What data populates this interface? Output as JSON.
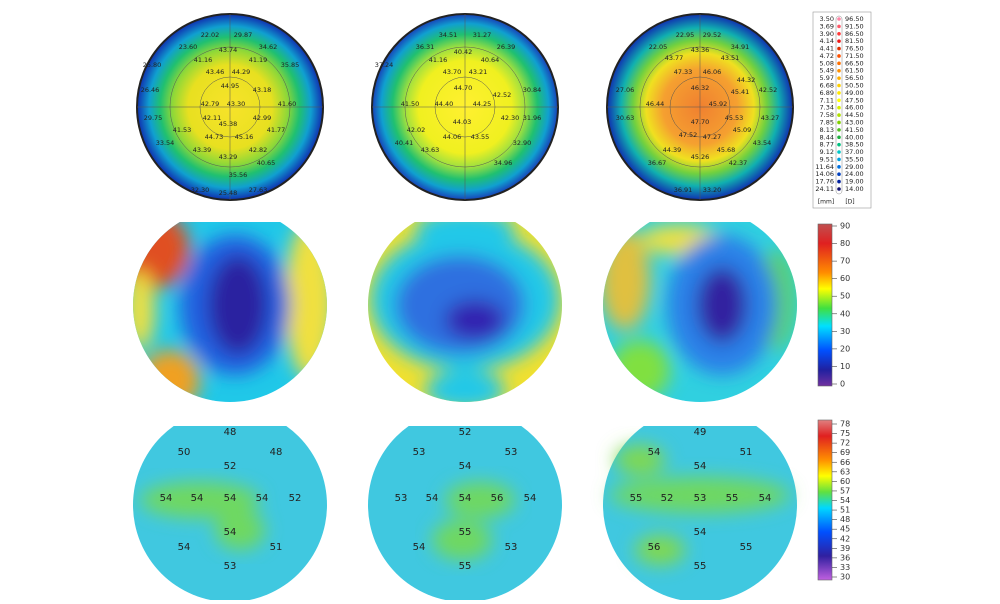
{
  "topography_maps": [
    {
      "labels": [
        "22.02",
        "29.87",
        "23.60",
        "34.62",
        "43.74",
        "25.80",
        "41.16",
        "41.19",
        "35.85",
        "43.46",
        "44.29",
        "26.46",
        "44.95",
        "43.18",
        "42.79",
        "43.30",
        "41.60",
        "29.75",
        "42.11",
        "42.99",
        "45.38",
        "41.53",
        "44.73",
        "45.16",
        "41.77",
        "33.54",
        "43.39",
        "42.82",
        "43.29",
        "40.65",
        "35.56",
        "32.30",
        "25.48",
        "27.63"
      ]
    },
    {
      "labels": [
        "34.51",
        "31.27",
        "36.31",
        "26.39",
        "40.42",
        "37.24",
        "41.16",
        "40.64",
        "43.70",
        "43.21",
        "44.70",
        "44.40",
        "44.25",
        "41.50",
        "42.52",
        "30.84",
        "44.03",
        "42.30",
        "42.02",
        "44.06",
        "43.55",
        "31.96",
        "43.63",
        "34.96",
        "32.90",
        "40.41"
      ]
    },
    {
      "labels": [
        "22.95",
        "29.52",
        "22.05",
        "34.91",
        "43.36",
        "43.77",
        "43.51",
        "47.33",
        "46.06",
        "46.32",
        "44.32",
        "27.06",
        "46.44",
        "45.92",
        "45.41",
        "42.52",
        "30.63",
        "47.70",
        "45.53",
        "43.27",
        "47.52",
        "47.27",
        "45.09",
        "44.39",
        "45.68",
        "43.54",
        "45.26",
        "36.67",
        "42.37",
        "36.91",
        "33.20"
      ]
    }
  ],
  "keratometry_scale": {
    "mm": [
      "3.50",
      "3.69",
      "3.90",
      "4.14",
      "4.41",
      "4.72",
      "5.08",
      "5.49",
      "5.97",
      "6.68",
      "6.89",
      "7.11",
      "7.34",
      "7.58",
      "7.85",
      "8.13",
      "8.44",
      "8.77",
      "9.12",
      "9.51",
      "11.64",
      "14.06",
      "17.76",
      "24.11"
    ],
    "diopters": [
      "96.50",
      "91.50",
      "86.50",
      "81.50",
      "76.50",
      "71.50",
      "66.50",
      "61.50",
      "56.50",
      "50.50",
      "49.00",
      "47.50",
      "46.00",
      "44.50",
      "43.00",
      "41.50",
      "40.00",
      "38.50",
      "37.00",
      "35.50",
      "29.00",
      "24.00",
      "19.00",
      "14.00"
    ],
    "mm_unit": "[mm]",
    "d_unit": "[D]"
  },
  "thickness_scale": {
    "ticks": [
      "90",
      "80",
      "70",
      "60",
      "50",
      "40",
      "30",
      "20",
      "10",
      "0"
    ]
  },
  "epithelium_maps": [
    {
      "labels": [
        "48",
        "50",
        "48",
        "52",
        "54",
        "54",
        "54",
        "54",
        "52",
        "54",
        "54",
        "51",
        "53"
      ]
    },
    {
      "labels": [
        "52",
        "53",
        "53",
        "54",
        "53",
        "54",
        "54",
        "56",
        "54",
        "55",
        "54",
        "53",
        "55"
      ]
    },
    {
      "labels": [
        "49",
        "54",
        "51",
        "54",
        "55",
        "52",
        "53",
        "55",
        "54",
        "54",
        "56",
        "55",
        "55"
      ]
    }
  ],
  "epithelium_scale": {
    "ticks": [
      "78",
      "75",
      "72",
      "69",
      "66",
      "63",
      "60",
      "57",
      "54",
      "51",
      "48",
      "45",
      "42",
      "39",
      "36",
      "33",
      "30"
    ]
  }
}
